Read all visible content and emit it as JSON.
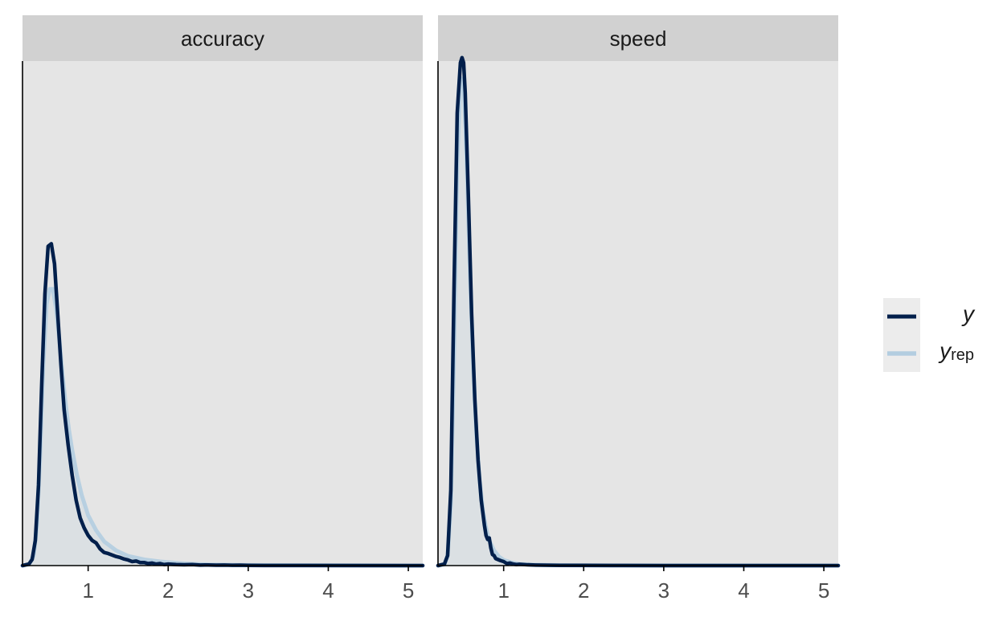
{
  "chart_data": {
    "type": "area",
    "xlim": [
      0.18,
      5.18
    ],
    "x_ticks": [
      "1",
      "2",
      "3",
      "4",
      "5"
    ],
    "x_tick_values": [
      1,
      2,
      3,
      4,
      5
    ],
    "ylim": [
      0,
      1.0
    ],
    "y_ticks_shown": false,
    "grid": false,
    "legend_position": "right",
    "legend": [
      {
        "key": "y",
        "label_main": "y",
        "label_sub": "",
        "color": "#011f4b"
      },
      {
        "key": "yrep",
        "label_main": "y",
        "label_sub": "rep",
        "color": "#b3cde0"
      }
    ],
    "panels": [
      {
        "label": "accuracy",
        "series": [
          {
            "key": "yrep",
            "color": "#b3cde0",
            "x": [
              0.18,
              0.26,
              0.32,
              0.36,
              0.4,
              0.44,
              0.48,
              0.52,
              0.56,
              0.6,
              0.64,
              0.68,
              0.72,
              0.76,
              0.8,
              0.86,
              0.92,
              1.0,
              1.1,
              1.2,
              1.35,
              1.5,
              1.7,
              1.9,
              2.2,
              2.5,
              3.0,
              5.18
            ],
            "y": [
              0,
              0.002,
              0.02,
              0.08,
              0.22,
              0.4,
              0.52,
              0.55,
              0.55,
              0.51,
              0.45,
              0.38,
              0.32,
              0.27,
              0.23,
              0.18,
              0.14,
              0.1,
              0.07,
              0.048,
              0.03,
              0.019,
              0.012,
              0.008,
              0.004,
              0.002,
              0.001,
              0
            ]
          },
          {
            "key": "y",
            "color": "#011f4b",
            "x": [
              0.18,
              0.26,
              0.3,
              0.34,
              0.38,
              0.42,
              0.46,
              0.5,
              0.54,
              0.58,
              0.62,
              0.66,
              0.7,
              0.75,
              0.8,
              0.85,
              0.9,
              0.95,
              1.0,
              1.05,
              1.1,
              1.15,
              1.2,
              1.25,
              1.3,
              1.35,
              1.4,
              1.45,
              1.5,
              1.55,
              1.6,
              1.65,
              1.7,
              1.75,
              1.8,
              1.85,
              1.9,
              1.95,
              2.0,
              2.1,
              2.2,
              2.3,
              2.4,
              2.5,
              2.6,
              2.7,
              2.8,
              2.9,
              3.0,
              3.2,
              5.18
            ],
            "y": [
              0,
              0.003,
              0.012,
              0.05,
              0.16,
              0.36,
              0.54,
              0.635,
              0.64,
              0.6,
              0.5,
              0.4,
              0.31,
              0.24,
              0.18,
              0.13,
              0.095,
              0.075,
              0.06,
              0.05,
              0.045,
              0.033,
              0.026,
              0.024,
              0.021,
              0.018,
              0.016,
              0.013,
              0.011,
              0.008,
              0.009,
              0.006,
              0.006,
              0.004,
              0.005,
              0.003,
              0.004,
              0.002,
              0.003,
              0.002,
              0.0015,
              0.002,
              0.001,
              0.0012,
              0.0008,
              0.001,
              0.0006,
              0.0007,
              0.0004,
              0.0002,
              0
            ]
          }
        ]
      },
      {
        "label": "speed",
        "series": [
          {
            "key": "yrep",
            "color": "#b3cde0",
            "x": [
              0.18,
              0.26,
              0.3,
              0.34,
              0.38,
              0.42,
              0.46,
              0.5,
              0.54,
              0.58,
              0.62,
              0.66,
              0.7,
              0.74,
              0.78,
              0.82,
              0.88,
              0.94,
              1.0,
              1.1,
              1.2,
              1.4,
              1.7,
              2.0,
              5.18
            ],
            "y": [
              0,
              0.002,
              0.02,
              0.12,
              0.42,
              0.8,
              0.97,
              0.96,
              0.8,
              0.58,
              0.4,
              0.26,
              0.17,
              0.11,
              0.075,
              0.05,
              0.03,
              0.018,
              0.011,
              0.006,
              0.003,
              0.0015,
              0.0008,
              0.0003,
              0
            ]
          },
          {
            "key": "y",
            "color": "#011f4b",
            "x": [
              0.18,
              0.26,
              0.3,
              0.34,
              0.38,
              0.42,
              0.46,
              0.48,
              0.5,
              0.52,
              0.56,
              0.6,
              0.64,
              0.68,
              0.72,
              0.76,
              0.78,
              0.8,
              0.82,
              0.84,
              0.86,
              0.88,
              0.9,
              0.93,
              0.96,
              1.0,
              1.04,
              1.08,
              1.12,
              1.16,
              1.2,
              1.3,
              1.4,
              1.5,
              1.7,
              2.0,
              2.5,
              3.0,
              5.18
            ],
            "y": [
              0,
              0.003,
              0.02,
              0.15,
              0.55,
              0.9,
              1.0,
              1.01,
              1.0,
              0.94,
              0.73,
              0.5,
              0.33,
              0.21,
              0.13,
              0.08,
              0.06,
              0.052,
              0.055,
              0.035,
              0.022,
              0.02,
              0.014,
              0.012,
              0.01,
              0.008,
              0.004,
              0.005,
              0.003,
              0.002,
              0.0025,
              0.0015,
              0.001,
              0.0008,
              0.0005,
              0.0003,
              0.0002,
              0.0001,
              0
            ]
          }
        ]
      }
    ]
  }
}
